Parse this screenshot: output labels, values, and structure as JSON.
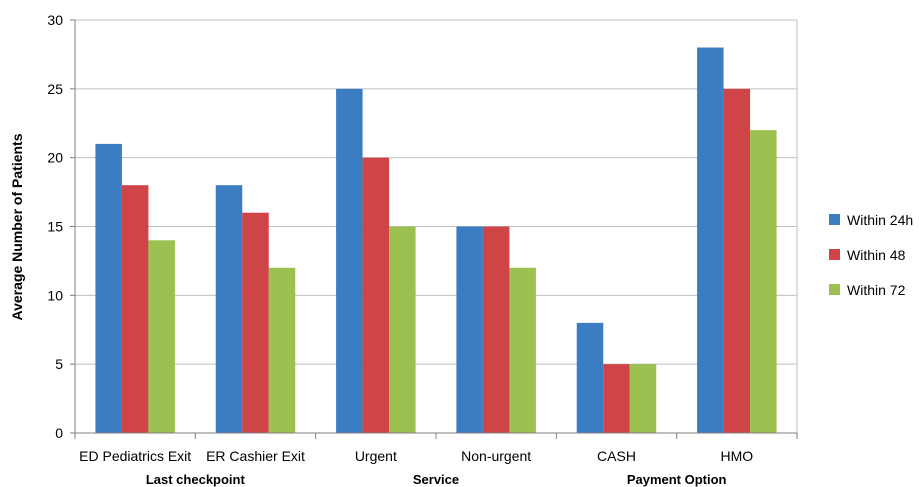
{
  "chart_data": {
    "type": "bar",
    "title": "",
    "xlabel": "",
    "ylabel": "Average Number of Patients",
    "ylim": [
      0,
      30
    ],
    "yticks": [
      0,
      5,
      10,
      15,
      20,
      25,
      30
    ],
    "grid": true,
    "legend_position": "right",
    "categories": [
      "ED Pediatrics Exit",
      "ER Cashier Exit",
      "Urgent",
      "Non-urgent",
      "CASH",
      "HMO"
    ],
    "category_groups": [
      {
        "label": "Last checkpoint",
        "categories": [
          "ED Pediatrics Exit",
          "ER Cashier Exit"
        ]
      },
      {
        "label": "Service",
        "categories": [
          "Urgent",
          "Non-urgent"
        ]
      },
      {
        "label": "Payment Option",
        "categories": [
          "CASH",
          "HMO"
        ]
      }
    ],
    "series": [
      {
        "name": "Within 24h",
        "color": "#3a7dc2",
        "values": [
          21,
          18,
          25,
          15,
          8,
          28
        ]
      },
      {
        "name": "Within 48",
        "color": "#cf4446",
        "values": [
          18,
          16,
          20,
          15,
          5,
          25
        ]
      },
      {
        "name": "Within 72",
        "color": "#9cc151",
        "values": [
          14,
          12,
          15,
          12,
          5,
          22
        ]
      }
    ]
  }
}
